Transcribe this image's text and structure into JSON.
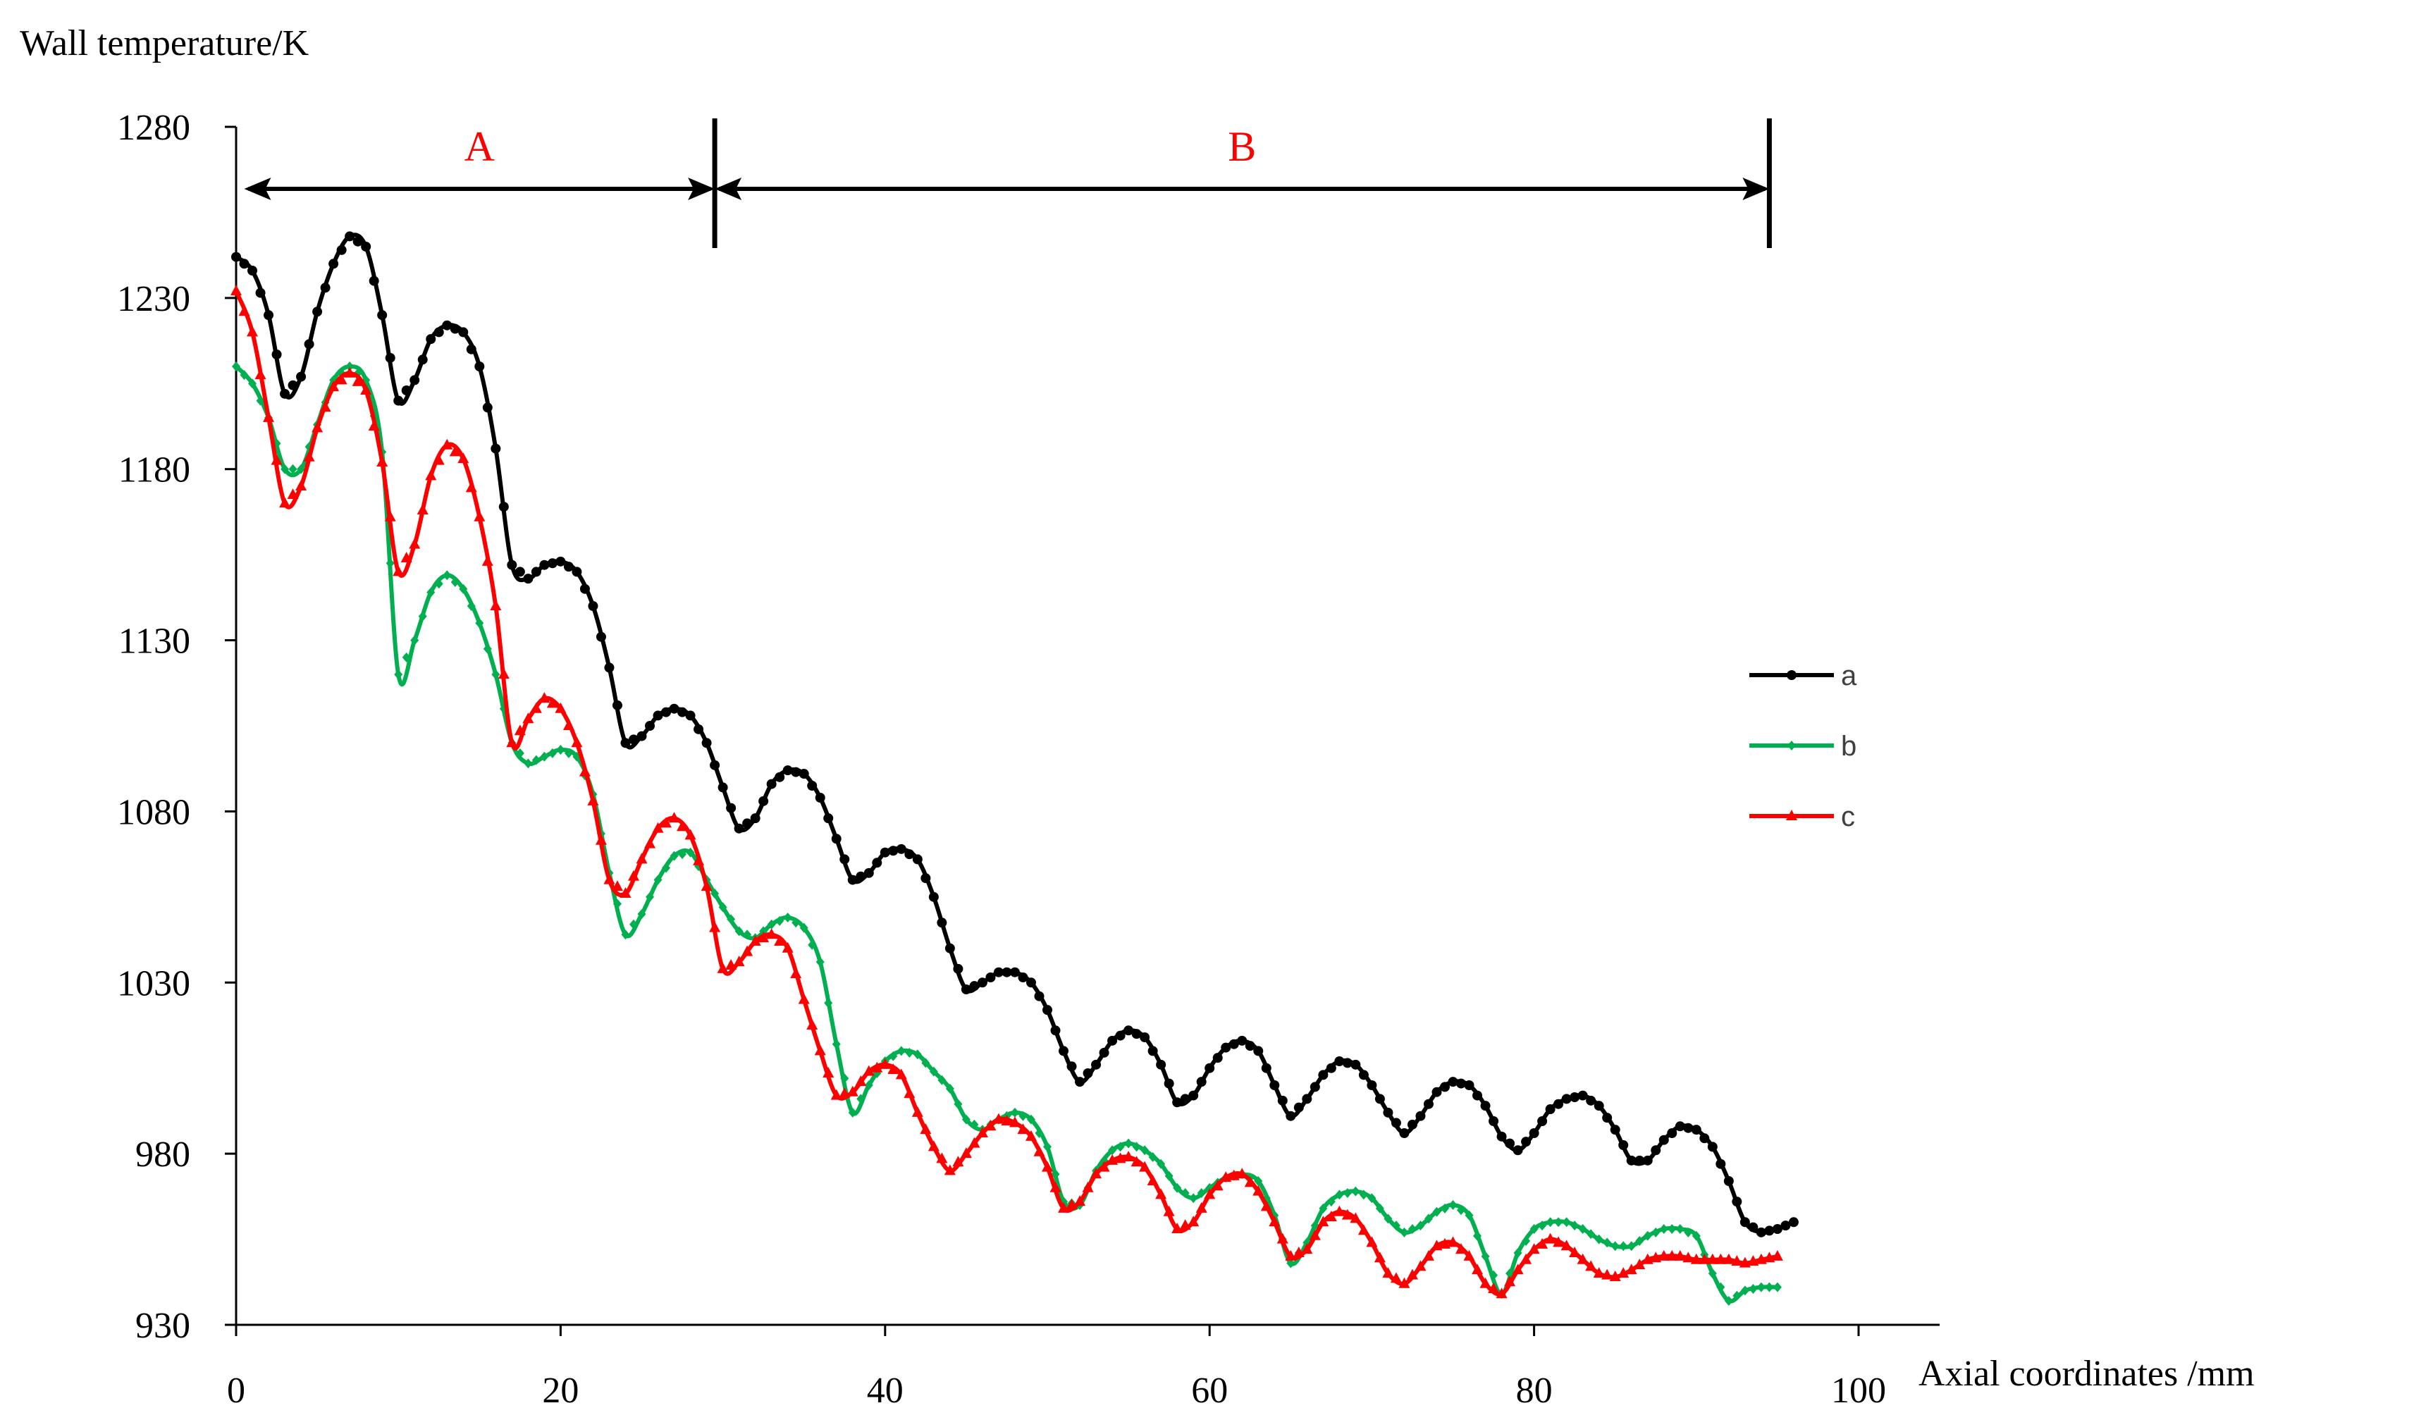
{
  "chart_data": {
    "type": "line",
    "ylabel": "Wall temperature/K",
    "xlabel": "Axial coordinates /mm",
    "xlim": [
      0,
      100
    ],
    "ylim": [
      930,
      1280
    ],
    "xticks": [
      0,
      20,
      40,
      60,
      80,
      100
    ],
    "yticks": [
      930,
      980,
      1030,
      1080,
      1130,
      1180,
      1230,
      1280
    ],
    "grid": false,
    "legend_position": "right",
    "regions": [
      {
        "label": "A",
        "x_start": 0.5,
        "x_end": 29.5,
        "color": "#FF0000"
      },
      {
        "label": "B",
        "x_start": 29.5,
        "x_end": 94.5,
        "color": "#FF0000"
      }
    ],
    "series": [
      {
        "name": "a",
        "color": "#000000",
        "marker": "circle",
        "points": [
          [
            0,
            1242
          ],
          [
            1,
            1238
          ],
          [
            2,
            1225
          ],
          [
            3,
            1202
          ],
          [
            4,
            1207
          ],
          [
            5,
            1226
          ],
          [
            6,
            1240
          ],
          [
            7,
            1248
          ],
          [
            8,
            1245
          ],
          [
            9,
            1225
          ],
          [
            10,
            1200
          ],
          [
            11,
            1206
          ],
          [
            12,
            1218
          ],
          [
            13,
            1222
          ],
          [
            14,
            1220
          ],
          [
            15,
            1210
          ],
          [
            16,
            1186
          ],
          [
            17,
            1152
          ],
          [
            18,
            1148
          ],
          [
            19,
            1152
          ],
          [
            20,
            1153
          ],
          [
            21,
            1150
          ],
          [
            22,
            1140
          ],
          [
            23,
            1122
          ],
          [
            24,
            1100
          ],
          [
            25,
            1102
          ],
          [
            26,
            1108
          ],
          [
            27,
            1110
          ],
          [
            28,
            1108
          ],
          [
            29,
            1100
          ],
          [
            30,
            1087
          ],
          [
            31,
            1075
          ],
          [
            32,
            1078
          ],
          [
            33,
            1088
          ],
          [
            34,
            1092
          ],
          [
            35,
            1091
          ],
          [
            36,
            1084
          ],
          [
            37,
            1072
          ],
          [
            38,
            1060
          ],
          [
            39,
            1062
          ],
          [
            40,
            1068
          ],
          [
            41,
            1069
          ],
          [
            42,
            1066
          ],
          [
            43,
            1055
          ],
          [
            44,
            1040
          ],
          [
            45,
            1028
          ],
          [
            46,
            1030
          ],
          [
            47,
            1033
          ],
          [
            48,
            1033
          ],
          [
            49,
            1030
          ],
          [
            50,
            1022
          ],
          [
            51,
            1010
          ],
          [
            52,
            1001
          ],
          [
            53,
            1006
          ],
          [
            54,
            1013
          ],
          [
            55,
            1016
          ],
          [
            56,
            1014
          ],
          [
            57,
            1006
          ],
          [
            58,
            995
          ],
          [
            59,
            997
          ],
          [
            60,
            1005
          ],
          [
            61,
            1011
          ],
          [
            62,
            1013
          ],
          [
            63,
            1010
          ],
          [
            64,
            1000
          ],
          [
            65,
            991
          ],
          [
            66,
            996
          ],
          [
            67,
            1003
          ],
          [
            68,
            1007
          ],
          [
            69,
            1006
          ],
          [
            70,
            1000
          ],
          [
            71,
            992
          ],
          [
            72,
            986
          ],
          [
            73,
            991
          ],
          [
            74,
            998
          ],
          [
            75,
            1001
          ],
          [
            76,
            1000
          ],
          [
            77,
            994
          ],
          [
            78,
            985
          ],
          [
            79,
            981
          ],
          [
            80,
            986
          ],
          [
            81,
            993
          ],
          [
            82,
            996
          ],
          [
            83,
            997
          ],
          [
            84,
            994
          ],
          [
            85,
            987
          ],
          [
            86,
            978
          ],
          [
            87,
            978
          ],
          [
            88,
            984
          ],
          [
            89,
            988
          ],
          [
            90,
            987
          ],
          [
            91,
            982
          ],
          [
            92,
            972
          ],
          [
            93,
            960
          ],
          [
            94,
            957
          ],
          [
            95,
            958
          ],
          [
            96,
            960
          ]
        ]
      },
      {
        "name": "b",
        "color": "#00B050",
        "marker": "diamond",
        "points": [
          [
            0,
            1210
          ],
          [
            1,
            1205
          ],
          [
            2,
            1195
          ],
          [
            3,
            1180
          ],
          [
            4,
            1180
          ],
          [
            5,
            1193
          ],
          [
            6,
            1206
          ],
          [
            7,
            1210
          ],
          [
            8,
            1206
          ],
          [
            9,
            1185
          ],
          [
            10,
            1120
          ],
          [
            11,
            1130
          ],
          [
            12,
            1144
          ],
          [
            13,
            1149
          ],
          [
            14,
            1145
          ],
          [
            15,
            1135
          ],
          [
            16,
            1120
          ],
          [
            17,
            1100
          ],
          [
            18,
            1094
          ],
          [
            19,
            1096
          ],
          [
            20,
            1098
          ],
          [
            21,
            1096
          ],
          [
            22,
            1085
          ],
          [
            23,
            1062
          ],
          [
            24,
            1044
          ],
          [
            25,
            1050
          ],
          [
            26,
            1060
          ],
          [
            27,
            1067
          ],
          [
            28,
            1068
          ],
          [
            29,
            1060
          ],
          [
            30,
            1052
          ],
          [
            31,
            1045
          ],
          [
            32,
            1043
          ],
          [
            33,
            1047
          ],
          [
            34,
            1049
          ],
          [
            35,
            1046
          ],
          [
            36,
            1036
          ],
          [
            37,
            1012
          ],
          [
            38,
            992
          ],
          [
            39,
            1000
          ],
          [
            40,
            1007
          ],
          [
            41,
            1010
          ],
          [
            42,
            1009
          ],
          [
            43,
            1004
          ],
          [
            44,
            999
          ],
          [
            45,
            990
          ],
          [
            46,
            987
          ],
          [
            47,
            990
          ],
          [
            48,
            992
          ],
          [
            49,
            990
          ],
          [
            50,
            982
          ],
          [
            51,
            966
          ],
          [
            52,
            965
          ],
          [
            53,
            975
          ],
          [
            54,
            981
          ],
          [
            55,
            983
          ],
          [
            56,
            981
          ],
          [
            57,
            977
          ],
          [
            58,
            970
          ],
          [
            59,
            967
          ],
          [
            60,
            970
          ],
          [
            61,
            973
          ],
          [
            62,
            974
          ],
          [
            63,
            972
          ],
          [
            64,
            962
          ],
          [
            65,
            948
          ],
          [
            66,
            954
          ],
          [
            67,
            964
          ],
          [
            68,
            968
          ],
          [
            69,
            969
          ],
          [
            70,
            967
          ],
          [
            71,
            961
          ],
          [
            72,
            957
          ],
          [
            73,
            959
          ],
          [
            74,
            963
          ],
          [
            75,
            965
          ],
          [
            76,
            962
          ],
          [
            77,
            950
          ],
          [
            78,
            939
          ],
          [
            79,
            951
          ],
          [
            80,
            958
          ],
          [
            81,
            960
          ],
          [
            82,
            960
          ],
          [
            83,
            958
          ],
          [
            84,
            955
          ],
          [
            85,
            953
          ],
          [
            86,
            953
          ],
          [
            87,
            956
          ],
          [
            88,
            958
          ],
          [
            89,
            958
          ],
          [
            90,
            956
          ],
          [
            91,
            945
          ],
          [
            92,
            937
          ],
          [
            93,
            940
          ],
          [
            94,
            941
          ],
          [
            95,
            941
          ]
        ]
      },
      {
        "name": "c",
        "color": "#FF0000",
        "marker": "triangle",
        "points": [
          [
            0,
            1232
          ],
          [
            1,
            1220
          ],
          [
            2,
            1195
          ],
          [
            3,
            1170
          ],
          [
            4,
            1175
          ],
          [
            5,
            1192
          ],
          [
            6,
            1204
          ],
          [
            7,
            1208
          ],
          [
            8,
            1203
          ],
          [
            9,
            1182
          ],
          [
            10,
            1150
          ],
          [
            11,
            1158
          ],
          [
            12,
            1178
          ],
          [
            13,
            1187
          ],
          [
            14,
            1183
          ],
          [
            15,
            1166
          ],
          [
            16,
            1140
          ],
          [
            17,
            1100
          ],
          [
            18,
            1107
          ],
          [
            19,
            1113
          ],
          [
            20,
            1110
          ],
          [
            21,
            1100
          ],
          [
            22,
            1083
          ],
          [
            23,
            1060
          ],
          [
            24,
            1056
          ],
          [
            25,
            1066
          ],
          [
            26,
            1075
          ],
          [
            27,
            1078
          ],
          [
            28,
            1073
          ],
          [
            29,
            1058
          ],
          [
            30,
            1034
          ],
          [
            31,
            1036
          ],
          [
            32,
            1042
          ],
          [
            33,
            1044
          ],
          [
            34,
            1040
          ],
          [
            35,
            1025
          ],
          [
            36,
            1010
          ],
          [
            37,
            997
          ],
          [
            38,
            998
          ],
          [
            39,
            1004
          ],
          [
            40,
            1006
          ],
          [
            41,
            1003
          ],
          [
            42,
            992
          ],
          [
            43,
            982
          ],
          [
            44,
            975
          ],
          [
            45,
            980
          ],
          [
            46,
            986
          ],
          [
            47,
            990
          ],
          [
            48,
            989
          ],
          [
            49,
            985
          ],
          [
            50,
            976
          ],
          [
            51,
            964
          ],
          [
            52,
            966
          ],
          [
            53,
            974
          ],
          [
            54,
            978
          ],
          [
            55,
            979
          ],
          [
            56,
            976
          ],
          [
            57,
            968
          ],
          [
            58,
            958
          ],
          [
            59,
            960
          ],
          [
            60,
            968
          ],
          [
            61,
            973
          ],
          [
            62,
            974
          ],
          [
            63,
            969
          ],
          [
            64,
            960
          ],
          [
            65,
            950
          ],
          [
            66,
            952
          ],
          [
            67,
            960
          ],
          [
            68,
            963
          ],
          [
            69,
            961
          ],
          [
            70,
            954
          ],
          [
            71,
            945
          ],
          [
            72,
            942
          ],
          [
            73,
            947
          ],
          [
            74,
            953
          ],
          [
            75,
            954
          ],
          [
            76,
            950
          ],
          [
            77,
            942
          ],
          [
            78,
            939
          ],
          [
            79,
            946
          ],
          [
            80,
            952
          ],
          [
            81,
            955
          ],
          [
            82,
            953
          ],
          [
            83,
            949
          ],
          [
            84,
            945
          ],
          [
            85,
            944
          ],
          [
            86,
            946
          ],
          [
            87,
            949
          ],
          [
            88,
            950
          ],
          [
            89,
            950
          ],
          [
            90,
            949
          ],
          [
            91,
            949
          ],
          [
            92,
            949
          ],
          [
            93,
            948
          ],
          [
            94,
            949
          ],
          [
            95,
            950
          ]
        ]
      }
    ]
  }
}
